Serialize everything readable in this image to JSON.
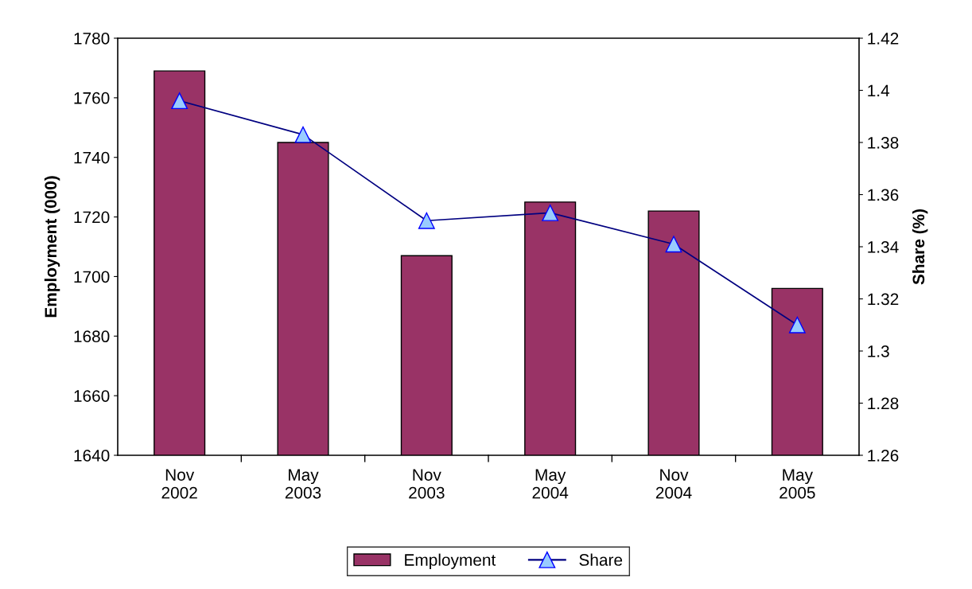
{
  "chart_data": {
    "type": "bar",
    "ylabel": "Employment (000)",
    "y2label": "Share (%)",
    "categories": [
      "Nov\n2002",
      "May\n2003",
      "Nov\n2003",
      "May\n2004",
      "Nov\n2004",
      "May\n2005"
    ],
    "series": [
      {
        "name": "Employment",
        "color": "#993366",
        "values": [
          1769,
          1745,
          1707,
          1725,
          1722,
          1696
        ]
      },
      {
        "name": "Share",
        "type": "line",
        "axis": "y2",
        "color": "#000080",
        "marker": "triangle",
        "values": [
          1.396,
          1.383,
          1.35,
          1.353,
          1.341,
          1.31
        ]
      }
    ],
    "ylim": [
      1640,
      1780
    ],
    "yticks": [
      1640,
      1660,
      1680,
      1700,
      1720,
      1740,
      1760,
      1780
    ],
    "y2lim": [
      1.26,
      1.42
    ],
    "y2ticks": [
      {
        "value": 1.26,
        "label": "1.26"
      },
      {
        "value": 1.28,
        "label": "1.28"
      },
      {
        "value": 1.3,
        "label": "1.3"
      },
      {
        "value": 1.32,
        "label": "1.32"
      },
      {
        "value": 1.34,
        "label": "1.34"
      },
      {
        "value": 1.36,
        "label": "1.36"
      },
      {
        "value": 1.38,
        "label": "1.38"
      },
      {
        "value": 1.4,
        "label": "1.4"
      },
      {
        "value": 1.42,
        "label": "1.42"
      }
    ],
    "grid": false,
    "legend": "bottom"
  }
}
